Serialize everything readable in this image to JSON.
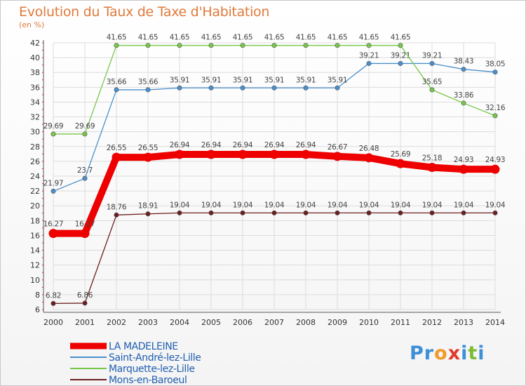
{
  "title": "Evolution du Taux de Taxe d'Habitation",
  "unit": "(en %)",
  "logo": {
    "text": "Proxiti",
    "letters": [
      {
        "ch": "P",
        "color": "#3d8fd6"
      },
      {
        "ch": "r",
        "color": "#3d8fd6"
      },
      {
        "ch": "o",
        "color": "#f09a2a"
      },
      {
        "ch": "x",
        "color": "#e03a2a"
      },
      {
        "ch": "i",
        "color": "#3d8fd6"
      },
      {
        "ch": "t",
        "color": "#7dbb35"
      },
      {
        "ch": "i",
        "color": "#3d8fd6"
      }
    ]
  },
  "chart_data": {
    "type": "line",
    "title": "Evolution du Taux de Taxe d'Habitation",
    "ylabel": "(en %)",
    "xlabel": "",
    "ylim": [
      6,
      42
    ],
    "yticks": [
      6,
      8,
      10,
      12,
      14,
      16,
      18,
      20,
      22,
      24,
      26,
      28,
      30,
      32,
      34,
      36,
      38,
      40,
      42
    ],
    "x": [
      "2000",
      "2001",
      "2002",
      "2003",
      "2004",
      "2005",
      "2006",
      "2007",
      "2008",
      "2009",
      "2010",
      "2011",
      "2012",
      "2013",
      "2014"
    ],
    "grid": true,
    "legend_position": "bottom-left",
    "series": [
      {
        "name": "Saint-André-lez-Lille",
        "color": "#4a8fcc",
        "values": [
          21.97,
          23.7,
          35.66,
          35.66,
          35.91,
          35.91,
          35.91,
          35.91,
          35.91,
          35.91,
          39.21,
          39.21,
          39.21,
          38.43,
          38.05
        ],
        "labels": [
          "21.97",
          "23.7",
          "35.66",
          "35.66",
          "35.91",
          "35.91",
          "35.91",
          "35.91",
          "35.91",
          "35.91",
          "39.21",
          "39.21",
          "39.21",
          "38.43",
          "38.05"
        ],
        "label_pos": "above"
      },
      {
        "name": "Marquette-lez-Lille",
        "color": "#77c74a",
        "values": [
          29.69,
          29.69,
          41.65,
          41.65,
          41.65,
          41.65,
          41.65,
          41.65,
          41.65,
          41.65,
          41.65,
          41.65,
          35.65,
          33.86,
          32.16
        ],
        "labels": [
          "29.69",
          "29.69",
          "41.65",
          "41.65",
          "41.65",
          "41.65",
          "41.65",
          "41.65",
          "41.65",
          "41.65",
          "41.65",
          "41.65",
          "35.65",
          "33.86",
          "32.16"
        ],
        "label_pos": "above"
      },
      {
        "name": "Mons-en-Baroeul",
        "color": "#6b1f1f",
        "values": [
          6.82,
          6.86,
          18.76,
          18.91,
          19.04,
          19.04,
          19.04,
          19.04,
          19.04,
          19.04,
          19.04,
          19.04,
          19.04,
          19.04,
          19.04
        ],
        "labels": [
          "6.82",
          "6.86",
          "18.76",
          "18.91",
          "19.04",
          "19.04",
          "19.04",
          "19.04",
          "19.04",
          "19.04",
          "19.04",
          "19.04",
          "19.04",
          "19.04",
          "19.04"
        ],
        "label_pos": "above"
      },
      {
        "name": "LA MADELEINE",
        "color": "#ee0000",
        "thick": true,
        "values": [
          16.27,
          16.27,
          26.55,
          26.55,
          26.94,
          26.94,
          26.94,
          26.94,
          26.94,
          26.67,
          26.48,
          25.69,
          25.18,
          24.93,
          24.93
        ],
        "labels": [
          "16.27",
          "16.27",
          "26.55",
          "26.55",
          "26.94",
          "26.94",
          "26.94",
          "26.94",
          "26.94",
          "26.67",
          "26.48",
          "25.69",
          "25.18",
          "24.93",
          "24.93"
        ],
        "label_pos": "above"
      }
    ],
    "legend_order": [
      "LA MADELEINE",
      "Saint-André-lez-Lille",
      "Marquette-lez-Lille",
      "Mons-en-Baroeul"
    ]
  }
}
